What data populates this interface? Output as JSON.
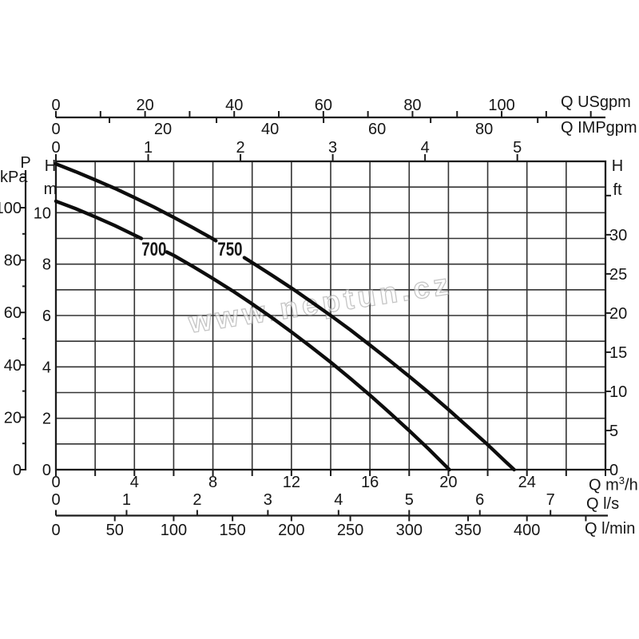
{
  "chart_data": {
    "type": "line",
    "title": "",
    "watermark": "www.neptun.cz",
    "description": "Pump performance curves: head H versus flow Q for models 700 and 750",
    "xlim_m3h": [
      0,
      28
    ],
    "ylim_m": [
      0,
      12
    ],
    "grid": {
      "x_step_m3h": 2,
      "y_step_m": 1,
      "grid_on": true
    },
    "flow_axes": [
      {
        "id": "usgpm",
        "label": "Q USgpm",
        "m3h_per_unit": 0.22712,
        "labeled_ticks": [
          0,
          20,
          40,
          60,
          80,
          100
        ],
        "minor_ticks": [
          10,
          30,
          50,
          70,
          90,
          110,
          120
        ]
      },
      {
        "id": "impgpm",
        "label": "Q IMPgpm",
        "m3h_per_unit": 0.27276,
        "labeled_ticks": [
          0,
          20,
          40,
          60,
          80
        ],
        "minor_ticks": [
          10,
          30,
          50,
          70,
          90
        ]
      },
      {
        "id": "top-aux",
        "label": "",
        "m3h_per_unit": 4.702,
        "labeled_ticks": [
          0,
          1,
          2,
          3,
          4,
          5
        ],
        "minor_ticks": []
      },
      {
        "id": "m3h",
        "label": "Q m³/h",
        "label_parts": {
          "pre": "Q m",
          "sup": "3",
          "post": "/h"
        },
        "m3h_per_unit": 1,
        "labeled_ticks": [
          0,
          4,
          8,
          12,
          16,
          20,
          24
        ],
        "minor_ticks": [
          2,
          6,
          10,
          14,
          18,
          22,
          26,
          28
        ]
      },
      {
        "id": "ls",
        "label": "Q l/s",
        "m3h_per_unit": 3.6,
        "labeled_ticks": [
          0,
          1,
          2,
          3,
          4,
          5,
          6,
          7
        ],
        "minor_ticks": []
      },
      {
        "id": "lmin",
        "label": "Q l/min",
        "m3h_per_unit": 0.06,
        "labeled_ticks": [
          0,
          50,
          100,
          150,
          200,
          250,
          300,
          350,
          400
        ],
        "minor_ticks": [
          450
        ]
      }
    ],
    "head_axes": [
      {
        "id": "kpa",
        "quantity": "P",
        "unit": "kPa",
        "m_per_unit": 0.10197,
        "labeled_ticks": [
          0,
          20,
          40,
          60,
          80,
          100
        ],
        "minor_ticks": [
          10,
          30,
          50,
          70,
          90
        ]
      },
      {
        "id": "m",
        "quantity": "H",
        "unit": "m",
        "m_per_unit": 1,
        "labeled_ticks": [
          0,
          2,
          4,
          6,
          8,
          10
        ],
        "minor_ticks": []
      },
      {
        "id": "ft",
        "quantity": "H",
        "unit": "ft",
        "m_per_unit": 0.3048,
        "labeled_ticks": [
          0,
          5,
          10,
          15,
          20,
          25,
          30
        ],
        "minor_ticks": [
          35
        ]
      }
    ],
    "series": [
      {
        "name": "700",
        "label_at_q_h": [
          5.0,
          8.58
        ],
        "segments": [
          [
            [
              0,
              10.45
            ],
            [
              1,
              10.16
            ],
            [
              2,
              9.84
            ],
            [
              3,
              9.5
            ],
            [
              4,
              9.13
            ],
            [
              4.35,
              9.0
            ]
          ],
          [
            [
              5.65,
              8.47
            ],
            [
              6,
              8.34
            ],
            [
              7,
              7.9
            ],
            [
              8,
              7.44
            ],
            [
              9,
              6.96
            ],
            [
              10,
              6.45
            ],
            [
              11,
              5.92
            ],
            [
              12,
              5.36
            ],
            [
              13,
              4.78
            ],
            [
              14,
              4.18
            ],
            [
              15,
              3.55
            ],
            [
              16,
              2.9
            ],
            [
              17,
              2.22
            ],
            [
              18,
              1.52
            ],
            [
              19,
              0.8
            ],
            [
              20.05,
              0.0
            ]
          ]
        ]
      },
      {
        "name": "750",
        "label_at_q_h": [
          8.87,
          8.58
        ],
        "segments": [
          [
            [
              0,
              11.9
            ],
            [
              1,
              11.6
            ],
            [
              2,
              11.28
            ],
            [
              3,
              10.95
            ],
            [
              4,
              10.59
            ],
            [
              5,
              10.22
            ],
            [
              6,
              9.82
            ],
            [
              7,
              9.41
            ],
            [
              8,
              8.98
            ],
            [
              8.15,
              8.91
            ]
          ],
          [
            [
              9.6,
              8.25
            ],
            [
              10,
              8.06
            ],
            [
              11,
              7.57
            ],
            [
              12,
              7.07
            ],
            [
              13,
              6.54
            ],
            [
              14,
              6.0
            ],
            [
              15,
              5.44
            ],
            [
              16,
              4.85
            ],
            [
              17,
              4.25
            ],
            [
              18,
              3.63
            ],
            [
              19,
              3.0
            ],
            [
              20,
              2.34
            ],
            [
              21,
              1.66
            ],
            [
              22,
              0.97
            ],
            [
              23,
              0.25
            ],
            [
              23.35,
              0.0
            ]
          ]
        ]
      }
    ],
    "colors": {
      "stroke": "#1b1b1b",
      "grid": "#333333",
      "curve": "#0d0d0d",
      "text": "#161616",
      "watermark": "#c9c9c9"
    }
  }
}
